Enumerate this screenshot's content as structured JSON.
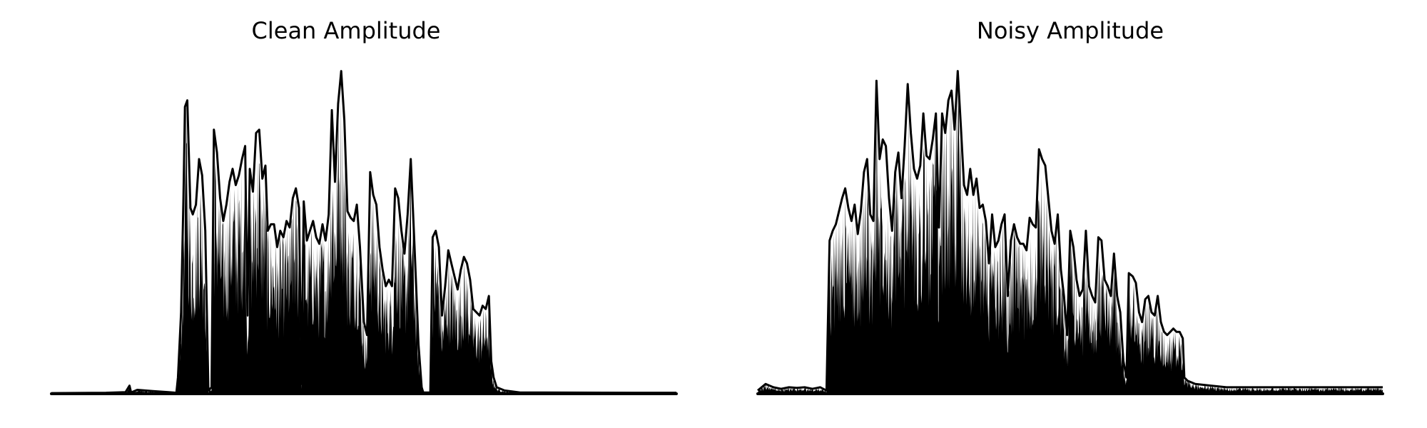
{
  "chart_data": [
    {
      "type": "line",
      "title": "Clean Amplitude",
      "axes": "off",
      "grid": false,
      "color": "#000000",
      "ylim": [
        0,
        1.0
      ],
      "xlim": [
        0,
        800
      ],
      "envelope": [
        [
          0,
          0.002
        ],
        [
          70,
          0.003
        ],
        [
          95,
          0.005
        ],
        [
          100,
          0.025
        ],
        [
          102,
          0.004
        ],
        [
          110,
          0.012
        ],
        [
          130,
          0.008
        ],
        [
          150,
          0.005
        ],
        [
          160,
          0.003
        ],
        [
          162,
          0.05
        ],
        [
          166,
          0.25
        ],
        [
          169,
          0.6
        ],
        [
          171,
          0.88
        ],
        [
          174,
          0.9
        ],
        [
          178,
          0.57
        ],
        [
          181,
          0.55
        ],
        [
          185,
          0.58
        ],
        [
          189,
          0.72
        ],
        [
          193,
          0.67
        ],
        [
          197,
          0.5
        ],
        [
          201,
          0.01
        ],
        [
          205,
          0.02
        ],
        [
          208,
          0.81
        ],
        [
          212,
          0.74
        ],
        [
          216,
          0.6
        ],
        [
          220,
          0.53
        ],
        [
          224,
          0.58
        ],
        [
          228,
          0.65
        ],
        [
          232,
          0.69
        ],
        [
          236,
          0.64
        ],
        [
          240,
          0.67
        ],
        [
          244,
          0.72
        ],
        [
          248,
          0.76
        ],
        [
          251,
          0.24
        ],
        [
          254,
          0.69
        ],
        [
          258,
          0.62
        ],
        [
          262,
          0.8
        ],
        [
          266,
          0.81
        ],
        [
          270,
          0.66
        ],
        [
          274,
          0.7
        ],
        [
          277,
          0.5
        ],
        [
          281,
          0.52
        ],
        [
          285,
          0.52
        ],
        [
          289,
          0.45
        ],
        [
          293,
          0.5
        ],
        [
          297,
          0.48
        ],
        [
          301,
          0.53
        ],
        [
          305,
          0.51
        ],
        [
          309,
          0.6
        ],
        [
          313,
          0.63
        ],
        [
          317,
          0.57
        ],
        [
          320,
          0.03
        ],
        [
          323,
          0.59
        ],
        [
          327,
          0.47
        ],
        [
          331,
          0.5
        ],
        [
          335,
          0.53
        ],
        [
          339,
          0.48
        ],
        [
          343,
          0.46
        ],
        [
          347,
          0.52
        ],
        [
          351,
          0.47
        ],
        [
          355,
          0.55
        ],
        [
          359,
          0.87
        ],
        [
          363,
          0.65
        ],
        [
          367,
          0.89
        ],
        [
          371,
          0.99
        ],
        [
          375,
          0.84
        ],
        [
          379,
          0.56
        ],
        [
          383,
          0.54
        ],
        [
          387,
          0.53
        ],
        [
          391,
          0.58
        ],
        [
          395,
          0.45
        ],
        [
          400,
          0.22
        ],
        [
          404,
          0.18
        ],
        [
          408,
          0.68
        ],
        [
          412,
          0.61
        ],
        [
          416,
          0.58
        ],
        [
          420,
          0.45
        ],
        [
          424,
          0.38
        ],
        [
          428,
          0.33
        ],
        [
          432,
          0.35
        ],
        [
          436,
          0.33
        ],
        [
          440,
          0.63
        ],
        [
          444,
          0.6
        ],
        [
          448,
          0.5
        ],
        [
          452,
          0.43
        ],
        [
          456,
          0.55
        ],
        [
          460,
          0.72
        ],
        [
          465,
          0.44
        ],
        [
          470,
          0.15
        ],
        [
          474,
          0.02
        ],
        [
          476,
          0.004
        ],
        [
          485,
          0.004
        ],
        [
          488,
          0.48
        ],
        [
          492,
          0.5
        ],
        [
          496,
          0.45
        ],
        [
          500,
          0.24
        ],
        [
          504,
          0.33
        ],
        [
          508,
          0.44
        ],
        [
          512,
          0.4
        ],
        [
          516,
          0.36
        ],
        [
          520,
          0.32
        ],
        [
          524,
          0.38
        ],
        [
          528,
          0.42
        ],
        [
          532,
          0.4
        ],
        [
          536,
          0.35
        ],
        [
          540,
          0.26
        ],
        [
          544,
          0.25
        ],
        [
          548,
          0.24
        ],
        [
          552,
          0.27
        ],
        [
          556,
          0.26
        ],
        [
          560,
          0.3
        ],
        [
          563,
          0.1
        ],
        [
          566,
          0.05
        ],
        [
          570,
          0.02
        ],
        [
          580,
          0.01
        ],
        [
          600,
          0.004
        ],
        [
          750,
          0.003
        ],
        [
          800,
          0.003
        ]
      ]
    },
    {
      "type": "line",
      "title": "Noisy Amplitude",
      "axes": "off",
      "grid": false,
      "color": "#000000",
      "ylim": [
        0,
        1.0
      ],
      "xlim": [
        0,
        800
      ],
      "envelope": [
        [
          0,
          0.01
        ],
        [
          10,
          0.03
        ],
        [
          20,
          0.02
        ],
        [
          30,
          0.015
        ],
        [
          40,
          0.02
        ],
        [
          50,
          0.018
        ],
        [
          60,
          0.02
        ],
        [
          70,
          0.015
        ],
        [
          80,
          0.02
        ],
        [
          88,
          0.01
        ],
        [
          92,
          0.47
        ],
        [
          96,
          0.5
        ],
        [
          100,
          0.52
        ],
        [
          104,
          0.56
        ],
        [
          108,
          0.6
        ],
        [
          112,
          0.63
        ],
        [
          116,
          0.57
        ],
        [
          120,
          0.53
        ],
        [
          124,
          0.58
        ],
        [
          128,
          0.49
        ],
        [
          132,
          0.56
        ],
        [
          136,
          0.68
        ],
        [
          140,
          0.72
        ],
        [
          144,
          0.55
        ],
        [
          148,
          0.53
        ],
        [
          152,
          0.96
        ],
        [
          156,
          0.72
        ],
        [
          160,
          0.78
        ],
        [
          164,
          0.76
        ],
        [
          168,
          0.6
        ],
        [
          172,
          0.5
        ],
        [
          176,
          0.68
        ],
        [
          180,
          0.74
        ],
        [
          184,
          0.6
        ],
        [
          188,
          0.76
        ],
        [
          192,
          0.95
        ],
        [
          196,
          0.8
        ],
        [
          200,
          0.69
        ],
        [
          204,
          0.66
        ],
        [
          208,
          0.7
        ],
        [
          212,
          0.86
        ],
        [
          216,
          0.73
        ],
        [
          220,
          0.72
        ],
        [
          224,
          0.78
        ],
        [
          228,
          0.86
        ],
        [
          232,
          0.51
        ],
        [
          236,
          0.86
        ],
        [
          240,
          0.8
        ],
        [
          244,
          0.9
        ],
        [
          248,
          0.93
        ],
        [
          252,
          0.81
        ],
        [
          256,
          0.99
        ],
        [
          260,
          0.82
        ],
        [
          264,
          0.64
        ],
        [
          268,
          0.61
        ],
        [
          272,
          0.69
        ],
        [
          276,
          0.61
        ],
        [
          280,
          0.66
        ],
        [
          284,
          0.57
        ],
        [
          288,
          0.58
        ],
        [
          292,
          0.53
        ],
        [
          296,
          0.4
        ],
        [
          300,
          0.55
        ],
        [
          304,
          0.45
        ],
        [
          308,
          0.47
        ],
        [
          312,
          0.52
        ],
        [
          316,
          0.55
        ],
        [
          320,
          0.3
        ],
        [
          324,
          0.47
        ],
        [
          328,
          0.52
        ],
        [
          332,
          0.48
        ],
        [
          336,
          0.46
        ],
        [
          340,
          0.46
        ],
        [
          344,
          0.44
        ],
        [
          348,
          0.54
        ],
        [
          352,
          0.52
        ],
        [
          356,
          0.51
        ],
        [
          360,
          0.75
        ],
        [
          364,
          0.72
        ],
        [
          368,
          0.7
        ],
        [
          372,
          0.6
        ],
        [
          376,
          0.5
        ],
        [
          380,
          0.46
        ],
        [
          384,
          0.55
        ],
        [
          388,
          0.38
        ],
        [
          392,
          0.3
        ],
        [
          396,
          0.18
        ],
        [
          400,
          0.5
        ],
        [
          404,
          0.45
        ],
        [
          408,
          0.35
        ],
        [
          412,
          0.3
        ],
        [
          416,
          0.32
        ],
        [
          420,
          0.5
        ],
        [
          424,
          0.33
        ],
        [
          428,
          0.3
        ],
        [
          432,
          0.28
        ],
        [
          436,
          0.48
        ],
        [
          440,
          0.47
        ],
        [
          444,
          0.35
        ],
        [
          448,
          0.33
        ],
        [
          452,
          0.3
        ],
        [
          456,
          0.43
        ],
        [
          460,
          0.3
        ],
        [
          464,
          0.25
        ],
        [
          468,
          0.1
        ],
        [
          472,
          0.05
        ],
        [
          475,
          0.37
        ],
        [
          480,
          0.36
        ],
        [
          484,
          0.34
        ],
        [
          488,
          0.25
        ],
        [
          492,
          0.22
        ],
        [
          496,
          0.29
        ],
        [
          500,
          0.3
        ],
        [
          504,
          0.25
        ],
        [
          508,
          0.24
        ],
        [
          512,
          0.3
        ],
        [
          516,
          0.22
        ],
        [
          520,
          0.19
        ],
        [
          524,
          0.18
        ],
        [
          528,
          0.19
        ],
        [
          532,
          0.2
        ],
        [
          536,
          0.19
        ],
        [
          540,
          0.19
        ],
        [
          544,
          0.17
        ],
        [
          546,
          0.05
        ],
        [
          550,
          0.04
        ],
        [
          560,
          0.03
        ],
        [
          580,
          0.025
        ],
        [
          600,
          0.02
        ],
        [
          650,
          0.02
        ],
        [
          700,
          0.02
        ],
        [
          750,
          0.02
        ],
        [
          800,
          0.02
        ]
      ]
    }
  ]
}
